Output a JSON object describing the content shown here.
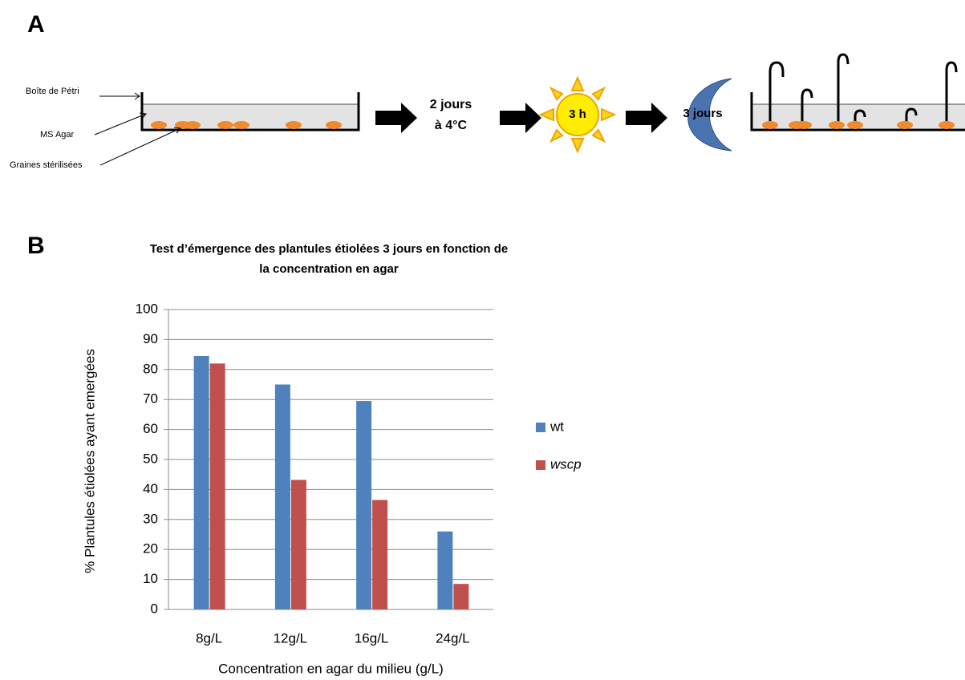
{
  "panel_a": {
    "label": "A",
    "dish_labels": [
      "Boîte de Pétri",
      "MS Agar",
      "Graines stérilisées"
    ],
    "steps": [
      "2 jours",
      "à 4°C",
      "3 h",
      "3 jours"
    ]
  },
  "panel_b": {
    "label": "B"
  },
  "chart_data": {
    "type": "bar",
    "title": "Test d’émergence des plantules étiolées 3 jours en fonction de la concentration en agar",
    "x_label": "Concentration en agar du milieu (g/L)",
    "y_label": "% Plantules étiolées ayant emergées",
    "categories": [
      "8g/L",
      "12g/L",
      "16g/L",
      "24g/L"
    ],
    "series": [
      {
        "name": "wt",
        "color": "#4f81bd",
        "values": [
          84.5,
          75,
          69.5,
          26
        ]
      },
      {
        "name": "wscp",
        "color": "#c0504d",
        "values": [
          82,
          43.2,
          36.5,
          8.5
        ]
      }
    ],
    "ylim": [
      0,
      100
    ],
    "yticks": [
      0,
      10,
      20,
      30,
      40,
      50,
      60,
      70,
      80,
      90,
      100
    ],
    "grid": true,
    "legend": "right"
  }
}
